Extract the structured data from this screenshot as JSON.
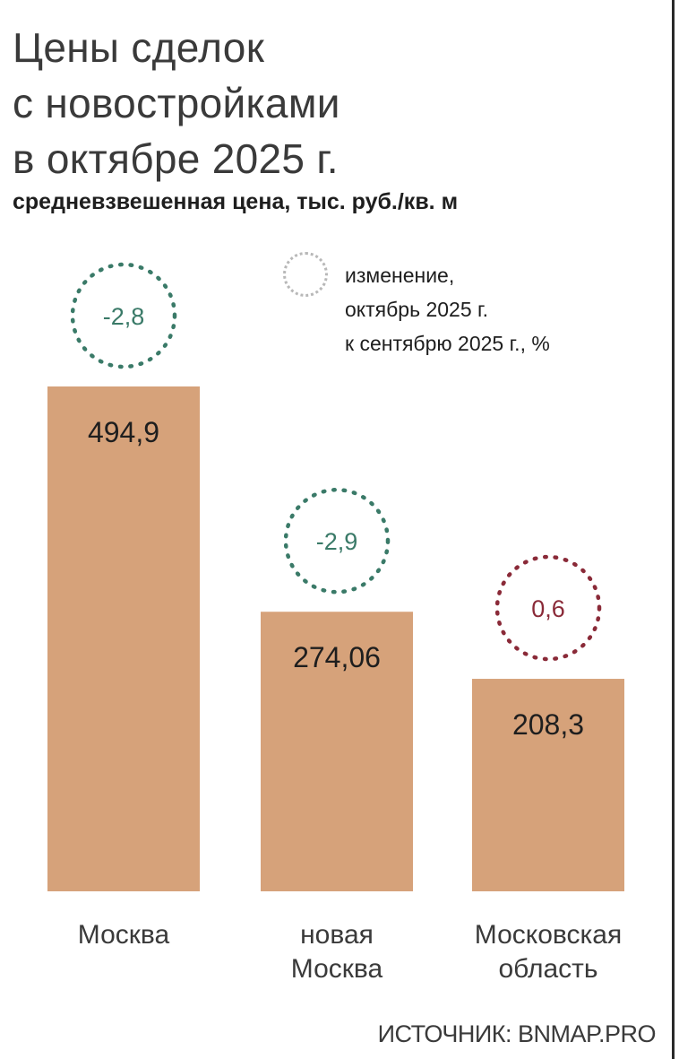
{
  "title_lines": [
    "Цены сделок",
    "с новостройками",
    "в октябре 2025 г."
  ],
  "subtitle": "средневзвешенная цена, тыс. руб./кв. м",
  "legend": {
    "lines": [
      "изменение,",
      "октябрь 2025 г.",
      "к сентябрю 2025 г., %"
    ]
  },
  "source": "ИСТОЧНИК: BNMAP.PRO",
  "colors": {
    "bar": "#d6a27a",
    "negative_change": "#3a7a68",
    "positive_change": "#8a2a38",
    "legend_circle": "#b8b8b8"
  },
  "chart_data": {
    "type": "bar",
    "categories": [
      [
        "Москва"
      ],
      [
        "новая",
        "Москва"
      ],
      [
        "Московская",
        "область"
      ]
    ],
    "values": [
      494.9,
      274.06,
      208.3
    ],
    "value_labels": [
      "494,9",
      "274,06",
      "208,3"
    ],
    "changes": [
      -2.8,
      -2.9,
      0.6
    ],
    "change_labels": [
      "-2,8",
      "-2,9",
      "0,6"
    ],
    "ylim": [
      0,
      494.9
    ],
    "grid": false
  }
}
